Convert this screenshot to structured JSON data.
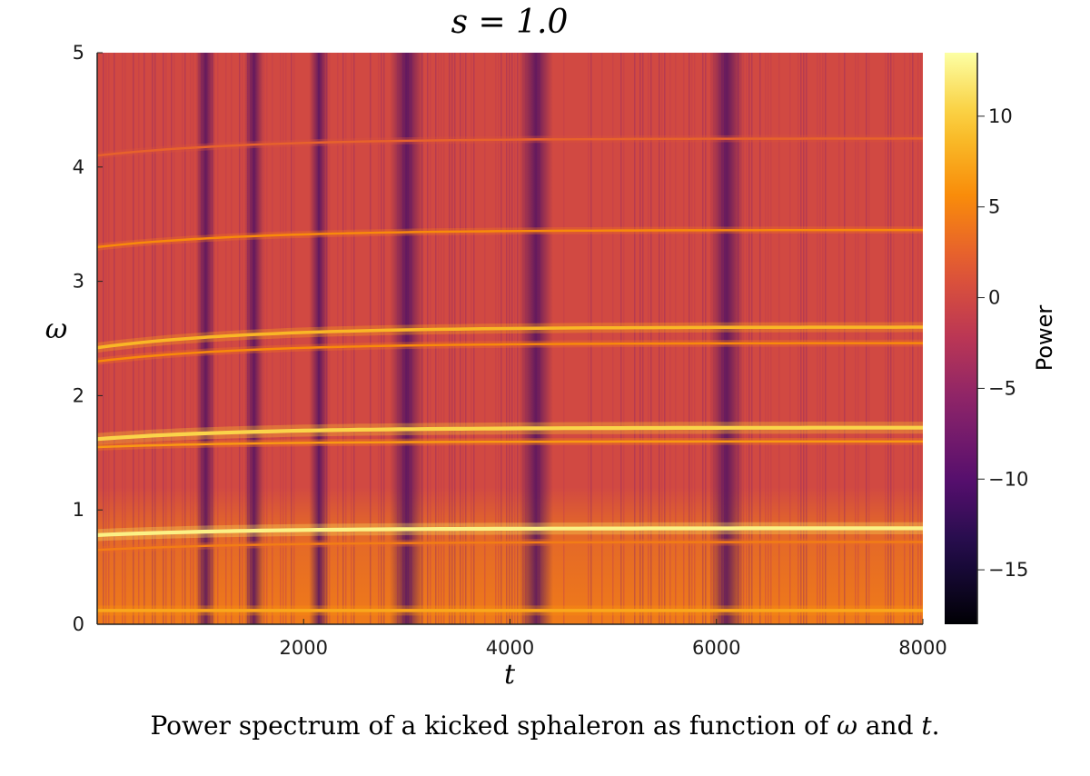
{
  "chart_data": {
    "type": "heatmap",
    "title": "s = 1.0",
    "xlabel": "t",
    "ylabel": "ω",
    "xlim": [
      0,
      8000
    ],
    "ylim": [
      0,
      5
    ],
    "x_ticks": [
      2000,
      4000,
      6000,
      8000
    ],
    "y_ticks": [
      0,
      1,
      2,
      3,
      4,
      5
    ],
    "colorbar": {
      "label": "Power",
      "range": [
        -18,
        13.5
      ],
      "ticks": [
        10,
        5,
        0,
        -5,
        -10,
        -15
      ],
      "tick_labels": [
        "10",
        "5",
        "0",
        "−5",
        "−10",
        "−15"
      ],
      "colormap": "inferno"
    },
    "background_power": 0,
    "bands": [
      {
        "omega_start": 0.78,
        "omega_end": 0.84,
        "power": 11
      },
      {
        "omega_start": 1.62,
        "omega_end": 1.72,
        "power": 9
      },
      {
        "omega_start": 1.55,
        "omega_end": 1.6,
        "power": 5
      },
      {
        "omega_start": 2.42,
        "omega_end": 2.6,
        "power": 7
      },
      {
        "omega_start": 2.3,
        "omega_end": 2.46,
        "power": 4
      },
      {
        "omega_start": 3.3,
        "omega_end": 3.45,
        "power": 4
      },
      {
        "omega_start": 0.12,
        "omega_end": 0.12,
        "power": 6
      },
      {
        "omega_start": 0.65,
        "omega_end": 0.72,
        "power": 3
      },
      {
        "omega_start": 4.1,
        "omega_end": 4.25,
        "power": 1
      }
    ],
    "dark_stripes_t": [
      1050,
      1520,
      2150,
      3000,
      4250,
      6100
    ],
    "low_frequency_glow": {
      "omega_max": 1.2,
      "power": 5
    }
  },
  "caption": {
    "text_before_omega": "Power spectrum of a kicked sphaleron as function of ",
    "omega_symbol": "ω",
    "text_and": " and ",
    "t_symbol": "t",
    "text_end": "."
  }
}
